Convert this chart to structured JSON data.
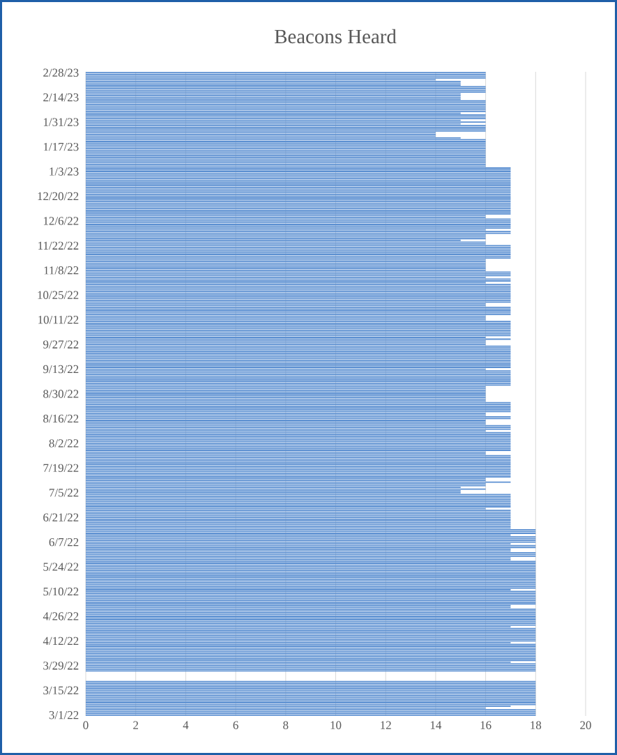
{
  "chart_data": {
    "type": "bar",
    "orientation": "horizontal",
    "title": "Beacons Heard",
    "categories": [
      "2/28/23",
      null,
      null,
      null,
      null,
      null,
      null,
      null,
      null,
      null,
      null,
      null,
      null,
      null,
      "2/14/23",
      null,
      null,
      null,
      null,
      null,
      null,
      null,
      null,
      null,
      null,
      null,
      null,
      null,
      "1/31/23",
      null,
      null,
      null,
      null,
      null,
      null,
      null,
      null,
      null,
      null,
      null,
      null,
      null,
      "1/17/23",
      null,
      null,
      null,
      null,
      null,
      null,
      null,
      null,
      null,
      null,
      null,
      null,
      null,
      "1/3/23",
      null,
      null,
      null,
      null,
      null,
      null,
      null,
      null,
      null,
      null,
      null,
      null,
      null,
      "12/20/22",
      null,
      null,
      null,
      null,
      null,
      null,
      null,
      null,
      null,
      null,
      null,
      null,
      null,
      "12/6/22",
      null,
      null,
      null,
      null,
      null,
      null,
      null,
      null,
      null,
      null,
      null,
      null,
      null,
      "11/22/22",
      null,
      null,
      null,
      null,
      null,
      null,
      null,
      null,
      null,
      null,
      null,
      null,
      null,
      "11/8/22",
      null,
      null,
      null,
      null,
      null,
      null,
      null,
      null,
      null,
      null,
      null,
      null,
      null,
      "10/25/22",
      null,
      null,
      null,
      null,
      null,
      null,
      null,
      null,
      null,
      null,
      null,
      null,
      null,
      "10/11/22",
      null,
      null,
      null,
      null,
      null,
      null,
      null,
      null,
      null,
      null,
      null,
      null,
      null,
      "9/27/22",
      null,
      null,
      null,
      null,
      null,
      null,
      null,
      null,
      null,
      null,
      null,
      null,
      null,
      "9/13/22",
      null,
      null,
      null,
      null,
      null,
      null,
      null,
      null,
      null,
      null,
      null,
      null,
      null,
      "8/30/22",
      null,
      null,
      null,
      null,
      null,
      null,
      null,
      null,
      null,
      null,
      null,
      null,
      null,
      "8/16/22",
      null,
      null,
      null,
      null,
      null,
      null,
      null,
      null,
      null,
      null,
      null,
      null,
      null,
      "8/2/22",
      null,
      null,
      null,
      null,
      null,
      null,
      null,
      null,
      null,
      null,
      null,
      null,
      null,
      "7/19/22",
      null,
      null,
      null,
      null,
      null,
      null,
      null,
      null,
      null,
      null,
      null,
      null,
      null,
      "7/5/22",
      null,
      null,
      null,
      null,
      null,
      null,
      null,
      null,
      null,
      null,
      null,
      null,
      null,
      "6/21/22",
      null,
      null,
      null,
      null,
      null,
      null,
      null,
      null,
      null,
      null,
      null,
      null,
      null,
      "6/7/22",
      null,
      null,
      null,
      null,
      null,
      null,
      null,
      null,
      null,
      null,
      null,
      null,
      null,
      "5/24/22",
      null,
      null,
      null,
      null,
      null,
      null,
      null,
      null,
      null,
      null,
      null,
      null,
      null,
      "5/10/22",
      null,
      null,
      null,
      null,
      null,
      null,
      null,
      null,
      null,
      null,
      null,
      null,
      null,
      "4/26/22",
      null,
      null,
      null,
      null,
      null,
      null,
      null,
      null,
      null,
      null,
      null,
      null,
      null,
      "4/12/22",
      null,
      null,
      null,
      null,
      null,
      null,
      null,
      null,
      null,
      null,
      null,
      null,
      null,
      "3/29/22",
      null,
      null,
      null,
      null,
      null,
      null,
      null,
      null,
      null,
      null,
      null,
      null,
      null,
      "3/15/22",
      null,
      null,
      null,
      null,
      null,
      null,
      null,
      null,
      null,
      null,
      null,
      null,
      null,
      "3/1/22"
    ],
    "values": [
      16,
      16,
      16,
      16,
      14,
      15,
      15,
      15,
      16,
      16,
      16,
      16,
      15,
      15,
      15,
      15,
      16,
      16,
      16,
      16,
      16,
      16,
      16,
      15,
      16,
      16,
      16,
      15,
      16,
      15,
      16,
      16,
      16,
      16,
      14,
      14,
      14,
      15,
      16,
      16,
      16,
      16,
      16,
      16,
      16,
      16,
      16,
      16,
      16,
      16,
      16,
      16,
      16,
      16,
      17,
      17,
      17,
      17,
      17,
      17,
      17,
      17,
      17,
      17,
      17,
      17,
      17,
      17,
      17,
      17,
      17,
      17,
      17,
      17,
      17,
      17,
      17,
      17,
      17,
      17,
      17,
      16,
      16,
      17,
      17,
      17,
      17,
      17,
      17,
      16,
      17,
      17,
      16,
      16,
      16,
      15,
      16,
      16,
      17,
      17,
      17,
      17,
      17,
      17,
      17,
      17,
      16,
      16,
      16,
      16,
      16,
      16,
      16,
      17,
      17,
      17,
      16,
      17,
      17,
      16,
      17,
      17,
      17,
      17,
      17,
      17,
      17,
      17,
      17,
      17,
      17,
      16,
      16,
      17,
      17,
      17,
      17,
      17,
      16,
      16,
      16,
      17,
      17,
      17,
      17,
      17,
      17,
      17,
      17,
      17,
      16,
      17,
      16,
      16,
      16,
      17,
      17,
      17,
      17,
      17,
      17,
      17,
      17,
      17,
      17,
      17,
      17,
      17,
      16,
      17,
      17,
      17,
      17,
      17,
      17,
      17,
      17,
      17,
      16,
      16,
      16,
      16,
      16,
      16,
      16,
      16,
      16,
      17,
      17,
      17,
      17,
      17,
      17,
      16,
      16,
      17,
      17,
      16,
      16,
      16,
      17,
      17,
      17,
      16,
      17,
      17,
      17,
      17,
      17,
      17,
      17,
      17,
      17,
      17,
      17,
      16,
      16,
      17,
      17,
      17,
      17,
      17,
      17,
      17,
      17,
      17,
      17,
      17,
      17,
      17,
      16,
      16,
      17,
      16,
      16,
      15,
      16,
      15,
      15,
      17,
      17,
      17,
      17,
      17,
      17,
      17,
      17,
      16,
      17,
      17,
      17,
      17,
      17,
      17,
      17,
      17,
      17,
      17,
      17,
      18,
      18,
      18,
      17,
      18,
      18,
      18,
      18,
      17,
      18,
      18,
      17,
      17,
      18,
      18,
      18,
      17,
      17,
      18,
      18,
      18,
      18,
      18,
      18,
      18,
      18,
      18,
      18,
      18,
      18,
      18,
      18,
      18,
      18,
      17,
      18,
      18,
      18,
      18,
      18,
      18,
      18,
      18,
      17,
      17,
      18,
      18,
      18,
      18,
      18,
      18,
      18,
      18,
      18,
      18,
      17,
      18,
      18,
      18,
      18,
      18,
      18,
      18,
      18,
      17,
      18,
      18,
      18,
      18,
      18,
      18,
      18,
      18,
      18,
      18,
      17,
      18,
      18,
      18,
      18,
      18,
      null,
      null,
      null,
      null,
      null,
      18,
      18,
      18,
      18,
      18,
      18,
      18,
      18,
      18,
      18,
      18,
      18,
      18,
      18,
      17,
      16,
      18,
      18,
      18,
      18
    ],
    "color": "#5b8fd1",
    "xlim": [
      0,
      20
    ],
    "xticks": [
      0,
      2,
      4,
      6,
      8,
      10,
      12,
      14,
      16,
      18,
      20
    ],
    "grid": "x"
  }
}
